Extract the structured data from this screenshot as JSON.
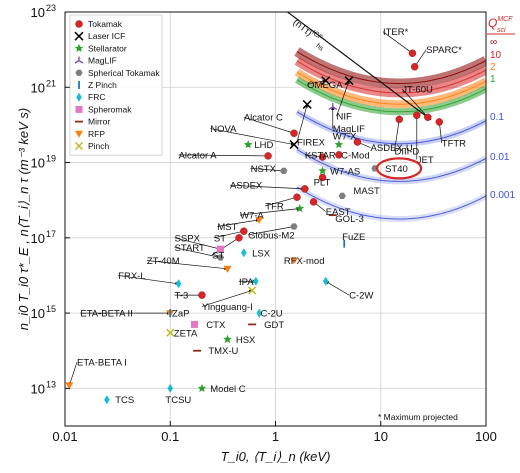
{
  "chart_data": {
    "type": "scatter",
    "title": "",
    "xlabel": "T_i0, ⟨T_i⟩_n (keV)",
    "ylabel": "n_i0 T_i0 τ*_E , n⟨T_i⟩_n τ (m⁻³ keV s)",
    "x_scale": "log",
    "y_scale": "log",
    "xlim": [
      0.01,
      100
    ],
    "ylim": [
      1000000000000.0,
      1e+23
    ],
    "x_ticks": [
      0.01,
      0.1,
      1,
      10,
      100
    ],
    "x_tick_labels": [
      "0.01",
      "0.1",
      "1",
      "10",
      "100"
    ],
    "y_ticks": [
      10000000000000.0,
      1000000000000000.0,
      1e+17,
      1e+19,
      1e+21,
      1e+23
    ],
    "y_tick_labels": [
      "10",
      "10",
      "10",
      "10",
      "10",
      "10"
    ],
    "y_tick_exponents": [
      "13",
      "15",
      "17",
      "19",
      "21",
      "23"
    ],
    "grid": true,
    "legend_position": "top-left",
    "legend": [
      {
        "name": "Tokamak",
        "marker": "circle",
        "color": "#d62728"
      },
      {
        "name": "Laser ICF",
        "marker": "x",
        "color": "#000000"
      },
      {
        "name": "Stellarator",
        "marker": "star",
        "color": "#2ca02c"
      },
      {
        "name": "MagLIF",
        "marker": "tri",
        "color": "#7b4fb5"
      },
      {
        "name": "Spherical Tokamak",
        "marker": "hexagon",
        "color": "#7f7f7f"
      },
      {
        "name": "Z Pinch",
        "marker": "vline",
        "color": "#1f77b4"
      },
      {
        "name": "FRC",
        "marker": "diamond",
        "color": "#17becf"
      },
      {
        "name": "Spheromak",
        "marker": "square",
        "color": "#e377c2"
      },
      {
        "name": "Mirror",
        "marker": "hline",
        "color": "#8c2b1a"
      },
      {
        "name": "RFP",
        "marker": "triangle_down",
        "color": "#ff7f0e"
      },
      {
        "name": "Pinch",
        "marker": "x",
        "color": "#bcbd22"
      }
    ],
    "q_contours": {
      "heading": "Q",
      "heading_superscript": "MCF",
      "heading_subscript": "sci",
      "values": [
        {
          "label": "∞",
          "color": "#8b0000"
        },
        {
          "label": "10",
          "color": "#d62728"
        },
        {
          "label": "2",
          "color": "#ff7f0e"
        },
        {
          "label": "1",
          "color": "#2ca02c"
        },
        {
          "label": "0.1",
          "color": "#3a4fd8"
        },
        {
          "label": "0.01",
          "color": "#3a4fd8"
        },
        {
          "label": "0.001",
          "color": "#3a4fd8"
        }
      ]
    },
    "icf_contour_label": "(nTτ)",
    "icf_contour_label_superscript": "ICF",
    "icf_contour_label_subscript": "hs",
    "footnote": "* Maximum projected",
    "points": [
      {
        "label": "ITER*",
        "type": "Tokamak",
        "x": 20,
        "y": 8e+21,
        "lx": 10.5,
        "ly": 3e+22
      },
      {
        "label": "SPARC*",
        "type": "Tokamak",
        "x": 21,
        "y": 3.5e+21,
        "lx": 27,
        "ly": 1e+22
      },
      {
        "label": "JT-60U",
        "type": "Tokamak",
        "x": 28,
        "y": 1.6e+20,
        "lx": 16,
        "ly": 9e+20
      },
      {
        "label": "DIII-D",
        "type": "Tokamak",
        "x": 15,
        "y": 1.4e+20,
        "lx": 13.5,
        "ly": 2e+19
      },
      {
        "label": "JET",
        "type": "Tokamak",
        "x": 22,
        "y": 1.8e+20,
        "lx": 22,
        "ly": 1.2e+19
      },
      {
        "label": "TFTR",
        "type": "Tokamak",
        "x": 36,
        "y": 1.2e+20,
        "lx": 38,
        "ly": 3.3e+19
      },
      {
        "label": "ASDEX-U",
        "type": "Tokamak",
        "x": 6,
        "y": 3.5e+19,
        "lx": 8,
        "ly": 2.5e+19
      },
      {
        "label": "ST40",
        "type": "Spherical Tokamak",
        "x": 8.8,
        "y": 7e+18,
        "lx": 11,
        "ly": 7e+18,
        "highlight": true
      },
      {
        "label": "Alcator C",
        "type": "Tokamak",
        "x": 1.5,
        "y": 6e+19,
        "lx": 0.5,
        "ly": 1.6e+20
      },
      {
        "label": "NOVA",
        "type": "Laser ICF",
        "x": 1.5,
        "y": 3e+19,
        "lx": 0.24,
        "ly": 8e+19
      },
      {
        "label": "LHD",
        "type": "Stellarator",
        "x": 0.55,
        "y": 3e+19,
        "lx": 0.63,
        "ly": 3e+19
      },
      {
        "label": "OMEGA",
        "type": "Laser ICF",
        "x": 3,
        "y": 1.5e+21,
        "lx": 2,
        "ly": 1.2e+21
      },
      {
        "label": "NIF",
        "type": "Laser ICF",
        "x": 5,
        "y": 1.5e+21,
        "lx": 3.8,
        "ly": 1.7e+20
      },
      {
        "label": "MagLIF",
        "type": "MagLIF",
        "x": 3.5,
        "y": 3e+20,
        "lx": 3.5,
        "ly": 8e+19
      },
      {
        "label": "FIREX",
        "type": "Laser ICF",
        "x": 2,
        "y": 3.5e+20,
        "lx": 1.6,
        "ly": 3.5e+19
      },
      {
        "label": "W7-X",
        "type": "Stellarator",
        "x": 4,
        "y": 3e+19,
        "lx": 3.5,
        "ly": 5e+19
      },
      {
        "label": "Alcator A",
        "type": "Tokamak",
        "x": 0.85,
        "y": 1.5e+19,
        "lx": 0.12,
        "ly": 1.6e+19
      },
      {
        "label": "KSTAR",
        "type": "Tokamak",
        "x": 2.8,
        "y": 1.4e+19,
        "lx": 1.9,
        "ly": 1.6e+19
      },
      {
        "label": "C-Mod",
        "type": "Tokamak",
        "x": 4,
        "y": 1.6e+19,
        "lx": 4.2,
        "ly": 1.6e+19
      },
      {
        "label": "NSTX",
        "type": "Spherical Tokamak",
        "x": 1.2,
        "y": 6e+18,
        "lx": 0.58,
        "ly": 7e+18
      },
      {
        "label": "W7-AS",
        "type": "Stellarator",
        "x": 2.8,
        "y": 6e+18,
        "lx": 3.3,
        "ly": 6e+18
      },
      {
        "label": "PLT",
        "type": "Tokamak",
        "x": 2.8,
        "y": 4e+18,
        "lx": 2.3,
        "ly": 3e+18
      },
      {
        "label": "ASDEX",
        "type": "Tokamak",
        "x": 1.9,
        "y": 2e+18,
        "lx": 0.37,
        "ly": 2.5e+18
      },
      {
        "label": "MAST",
        "type": "Spherical Tokamak",
        "x": 4.3,
        "y": 1.3e+18,
        "lx": 5.5,
        "ly": 1.8e+18
      },
      {
        "label": "TFR",
        "type": "Tokamak",
        "x": 1.6,
        "y": 1.2e+18,
        "lx": 0.8,
        "ly": 7e+17
      },
      {
        "label": "EAST",
        "type": "Tokamak",
        "x": 2.3,
        "y": 9e+17,
        "lx": 3,
        "ly": 5e+17
      },
      {
        "label": "W7-A",
        "type": "Stellarator",
        "x": 1.7,
        "y": 6e+17,
        "lx": 0.46,
        "ly": 4e+17
      },
      {
        "label": "GOL-3",
        "type": "Mirror",
        "x": 3.5,
        "y": 4e+17,
        "lx": 3.7,
        "ly": 3.3e+17
      },
      {
        "label": "MST",
        "type": "RFP",
        "x": 0.7,
        "y": 3e+17,
        "lx": 0.28,
        "ly": 2e+17
      },
      {
        "label": "Globus-M2",
        "type": "Spherical Tokamak",
        "x": 1.5,
        "y": 2e+17,
        "lx": 0.55,
        "ly": 1.2e+17
      },
      {
        "label": "SSPX",
        "type": "Spheromak",
        "x": 0.3,
        "y": 5e+16,
        "lx": 0.11,
        "ly": 1e+17
      },
      {
        "label": "ST",
        "type": "Tokamak",
        "x": 0.5,
        "y": 1.5e+17,
        "lx": 0.26,
        "ly": 1e+17
      },
      {
        "label": "START",
        "type": "Spherical Tokamak",
        "x": 0.3,
        "y": 3e+16,
        "lx": 0.11,
        "ly": 5.5e+16
      },
      {
        "label": "ST",
        "type": "Tokamak",
        "x": 0.45,
        "y": 1e+17,
        "lx": 0.25,
        "ly": 3.5e+16
      },
      {
        "label": "LSX",
        "type": "FRC",
        "x": 0.5,
        "y": 4e+16,
        "lx": 0.6,
        "ly": 4e+16
      },
      {
        "label": "ZT-40M",
        "type": "RFP",
        "x": 0.35,
        "y": 1.5e+16,
        "lx": 0.06,
        "ly": 2.5e+16
      },
      {
        "label": "RFX-mod",
        "type": "RFP",
        "x": 1.5,
        "y": 2.5e+16,
        "lx": 1.2,
        "ly": 2.5e+16
      },
      {
        "label": "FuZE",
        "type": "Z Pinch",
        "x": 4.5,
        "y": 7e+16,
        "lx": 4.3,
        "ly": 1.1e+17
      },
      {
        "label": "FRX-L",
        "type": "FRC",
        "x": 0.12,
        "y": 6000000000000000.0,
        "lx": 0.032,
        "ly": 1e+16
      },
      {
        "label": "IPA",
        "type": "FRC",
        "x": 0.65,
        "y": 7000000000000000.0,
        "lx": 0.45,
        "ly": 7000000000000000.0
      },
      {
        "label": "T-3",
        "type": "Tokamak",
        "x": 0.2,
        "y": 3000000000000000.0,
        "lx": 0.11,
        "ly": 3000000000000000.0
      },
      {
        "label": "Yingguang-I",
        "type": "Pinch",
        "x": 0.6,
        "y": 4000000000000000.0,
        "lx": 0.2,
        "ly": 1500000000000000.0
      },
      {
        "label": "C-2W",
        "type": "FRC",
        "x": 3,
        "y": 7000000000000000.0,
        "lx": 5,
        "ly": 3000000000000000.0
      },
      {
        "label": "ETA-BETA II",
        "type": "RFP",
        "x": 0.1,
        "y": 1000000000000000.0,
        "lx": 0.014,
        "ly": 1000000000000000.0
      },
      {
        "label": "ZaP",
        "type": "Z Pinch",
        "x": 0.1,
        "y": 1000000000000000.0,
        "lx": 0.104,
        "ly": 1000000000000000.0
      },
      {
        "label": "C-2U",
        "type": "FRC",
        "x": 0.7,
        "y": 1000000000000000.0,
        "lx": 0.72,
        "ly": 1000000000000000.0
      },
      {
        "label": "CTX",
        "type": "Spheromak",
        "x": 0.17,
        "y": 500000000000000.0,
        "lx": 0.22,
        "ly": 500000000000000.0
      },
      {
        "label": "GDT",
        "type": "Mirror",
        "x": 0.6,
        "y": 500000000000000.0,
        "lx": 0.78,
        "ly": 500000000000000.0
      },
      {
        "label": "ZETA",
        "type": "Pinch",
        "x": 0.1,
        "y": 300000000000000.0,
        "lx": 0.108,
        "ly": 300000000000000.0
      },
      {
        "label": "HSX",
        "type": "Stellarator",
        "x": 0.35,
        "y": 200000000000000.0,
        "lx": 0.42,
        "ly": 200000000000000.0
      },
      {
        "label": "TMX-U",
        "type": "Mirror",
        "x": 0.18,
        "y": 100000000000000.0,
        "lx": 0.23,
        "ly": 100000000000000.0
      },
      {
        "label": "Model C",
        "type": "Stellarator",
        "x": 0.2,
        "y": 10000000000000.0,
        "lx": 0.24,
        "ly": 10000000000000.0
      },
      {
        "label": "TCSU",
        "type": "FRC",
        "x": 0.1,
        "y": 10000000000000.0,
        "lx": 0.09,
        "ly": 5000000000000.0
      },
      {
        "label": "ETA-BETA I",
        "type": "RFP",
        "x": 0.011,
        "y": 12000000000000.0,
        "lx": 0.013,
        "ly": 50000000000000.0
      },
      {
        "label": "TCS",
        "type": "FRC",
        "x": 0.025,
        "y": 5000000000000.0,
        "lx": 0.03,
        "ly": 5000000000000.0
      }
    ]
  }
}
